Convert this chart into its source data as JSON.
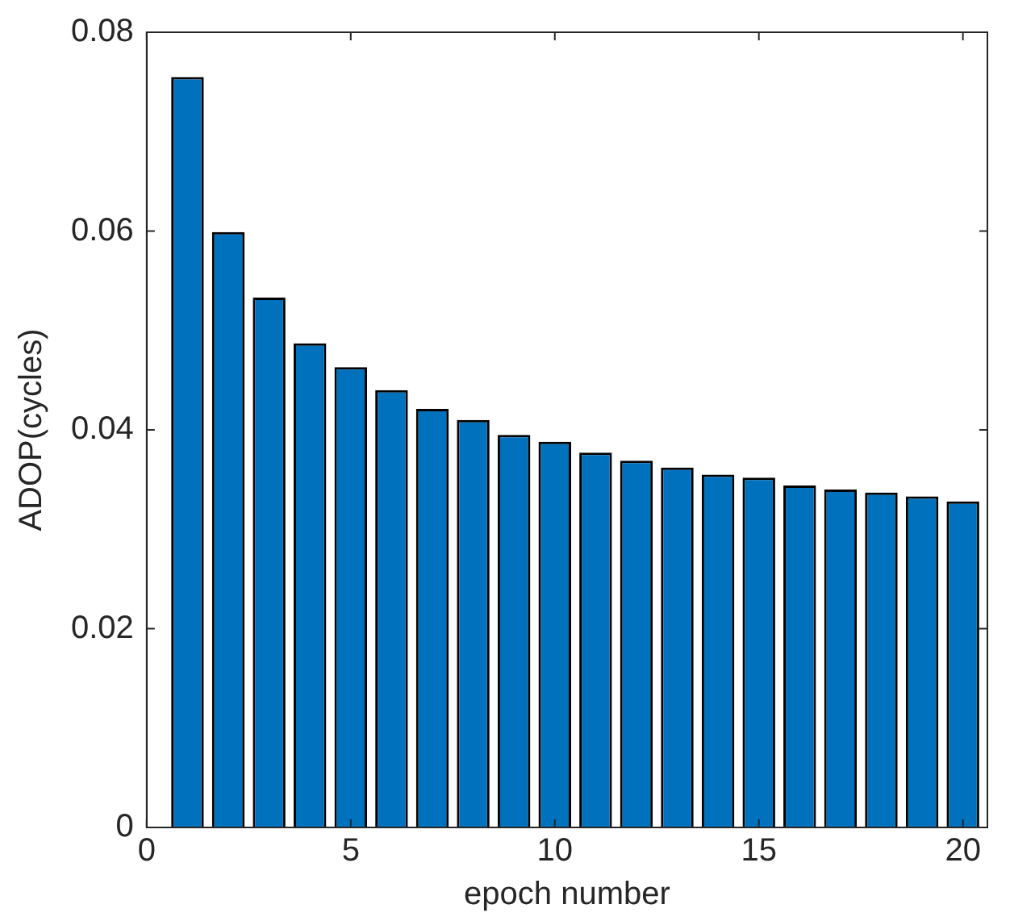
{
  "chart_data": {
    "type": "bar",
    "xlabel": "epoch number",
    "ylabel": "ADOP(cycles)",
    "x": [
      1,
      2,
      3,
      4,
      5,
      6,
      7,
      8,
      9,
      10,
      11,
      12,
      13,
      14,
      15,
      16,
      17,
      18,
      19,
      20
    ],
    "values": [
      0.0755,
      0.0599,
      0.0533,
      0.0487,
      0.0463,
      0.044,
      0.0421,
      0.041,
      0.0395,
      0.0388,
      0.0377,
      0.0369,
      0.0362,
      0.0355,
      0.0352,
      0.0344,
      0.034,
      0.0337,
      0.0333,
      0.0328
    ],
    "color": "#0072bd",
    "xlim": [
      0,
      20.6
    ],
    "xticks": [
      0,
      5,
      10,
      15,
      20
    ],
    "ylim": [
      0,
      0.08
    ],
    "yticks": [
      0,
      0.02,
      0.04,
      0.06,
      0.08
    ],
    "grid": false,
    "legend": false
  }
}
